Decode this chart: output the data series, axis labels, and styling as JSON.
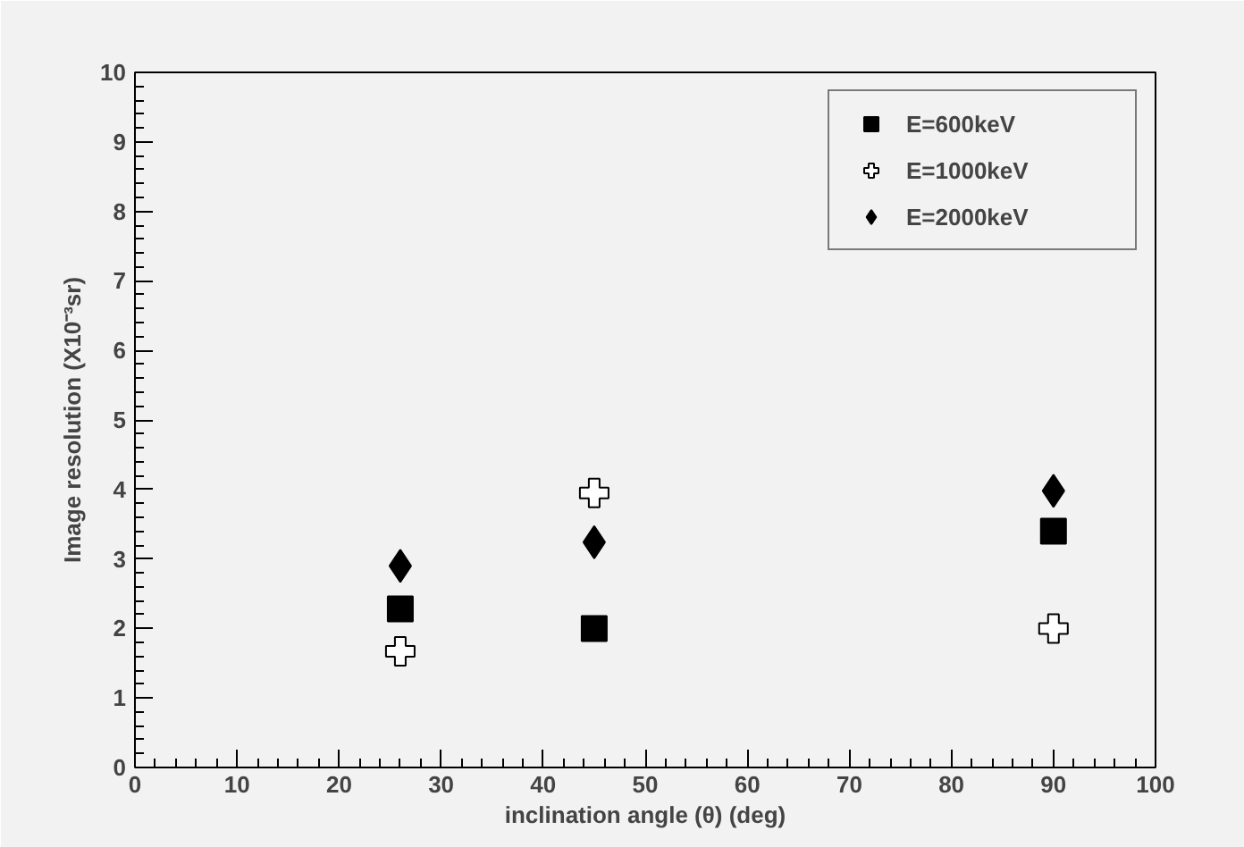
{
  "chart_data": {
    "type": "scatter",
    "xlabel": "inclination angle (θ) (deg)",
    "ylabel": "Image resolution (X10⁻³sr)",
    "x": [
      26,
      45,
      90
    ],
    "series": [
      {
        "name": "E=600keV",
        "color": "#000000",
        "marker": "square",
        "values": [
          2.28,
          2.0,
          3.4
        ]
      },
      {
        "name": "E=1000keV",
        "color": "#000000",
        "marker": "cross",
        "values": [
          1.67,
          3.95,
          2.0
        ]
      },
      {
        "name": "E=2000keV",
        "color": "#000000",
        "marker": "diamond",
        "values": [
          2.9,
          3.24,
          3.98
        ]
      }
    ],
    "xlim": [
      0,
      100
    ],
    "xticks": [
      0,
      10,
      20,
      30,
      40,
      50,
      60,
      70,
      80,
      90,
      100
    ],
    "ylim": [
      0,
      10
    ],
    "yticks": [
      0,
      1,
      2,
      3,
      4,
      5,
      6,
      7,
      8,
      9,
      10
    ],
    "grid": false,
    "legend": "top right"
  }
}
